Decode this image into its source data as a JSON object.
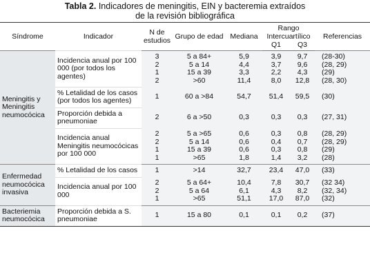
{
  "title": {
    "label": "Tabla 2.",
    "lines": [
      "Indicadores de meningitis, EIN y bacteremia extraídos",
      "de la revisión bibliográfica"
    ]
  },
  "header": {
    "syndrome": "Síndrome",
    "indicator": "Indicador",
    "n": "N de estudios",
    "age": "Grupo de edad",
    "median": "Mediana",
    "range": "Rango Intercuartílico",
    "q1": "Q1",
    "q3": "Q3",
    "refs": "Referencias"
  },
  "groups": [
    {
      "syndrome": "Meningitis y Meningitis neumocócica",
      "indicators": [
        {
          "label": "Incidencia anual por 100 000 (por todos los agentes)",
          "rows": [
            [
              "3",
              "5 a 84+",
              "5,9",
              "3,9",
              "9,7",
              "(28-30)"
            ],
            [
              "2",
              "5 a 14",
              "4,4",
              "3,7",
              "9,6",
              "(28, 29)"
            ],
            [
              "1",
              "15 a 39",
              "3,3",
              "2,2",
              "4,3",
              "(29)"
            ],
            [
              "2",
              ">60",
              "11,4",
              "8,0",
              "12,8",
              "(28, 30)"
            ]
          ]
        },
        {
          "label": "% Letalidad de los casos (por todos los agentes)",
          "rows": [
            [
              "1",
              "60 a >84",
              "54,7",
              "51,4",
              "59,5",
              "(30)"
            ]
          ]
        },
        {
          "label": "Proporción debida a pneumoniae",
          "rows": [
            [
              "2",
              "6 a >50",
              "0,3",
              "0,3",
              "0,3",
              "(27, 31)"
            ]
          ]
        },
        {
          "label": "Incidencia anual Meningitis neumocócicas por 100 000",
          "rows": [
            [
              "2",
              "5 a >65",
              "0,6",
              "0,3",
              "0,8",
              "(28, 29)"
            ],
            [
              "2",
              "5 a 14",
              "0,6",
              "0,4",
              "0,7",
              "(28, 29)"
            ],
            [
              "1",
              "15 a 39",
              "0,6",
              "0,3",
              "0,8",
              "(29)"
            ],
            [
              "1",
              ">65",
              "1,8",
              "1,4",
              "3,2",
              "(28)"
            ]
          ]
        }
      ]
    },
    {
      "syndrome": "Enfermedad neumocócica invasiva",
      "indicators": [
        {
          "label": "% Letalidad de los casos",
          "rows": [
            [
              "1",
              ">14",
              "32,7",
              "23,4",
              "47,0",
              "(33)"
            ]
          ]
        },
        {
          "label": "Incidencia anual por 100 000",
          "rows": [
            [
              "2",
              "5 a 64+",
              "10,4",
              "7,8",
              "30,7",
              "(32 34)"
            ],
            [
              "2",
              "5 a 64",
              "6,1",
              "4,3",
              "8,2",
              "(32, 34)"
            ],
            [
              "1",
              ">65",
              "51,1",
              "17,0",
              "87,0",
              "(32)"
            ]
          ]
        }
      ]
    },
    {
      "syndrome": "Bacteriemia neumocócica",
      "indicators": [
        {
          "label": "Proporción debida a S. pneumoniae",
          "rows": [
            [
              "1",
              "15 a 80",
              "0,1",
              "0,1",
              "0,2",
              "(37)"
            ]
          ]
        }
      ]
    }
  ]
}
